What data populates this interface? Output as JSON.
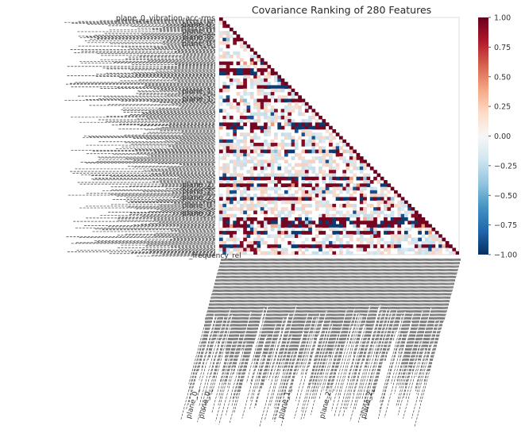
{
  "chart_data": {
    "type": "heatmap",
    "title": "Covariance Ranking of 280 Features",
    "n_features": 280,
    "matrix": "lower-triangular covariance ranking (dense, 280x280)",
    "value_range": [
      -1.0,
      1.0
    ],
    "colorbar": {
      "colormap": "RdBu_r",
      "ticks": [
        "1.00",
        "0.75",
        "0.50",
        "0.25",
        "0.00",
        "−0.25",
        "−0.50",
        "−0.75",
        "−1.00"
      ],
      "tick_values": [
        1.0,
        0.75,
        0.5,
        0.25,
        0.0,
        -0.25,
        -0.5,
        -0.75,
        -1.0
      ]
    },
    "y_tick_labels_legible": [
      "plane_0_vibration-acc-rms",
      "plane_0_",
      "plane_0_",
      "plane_0_",
      "plane_0_",
      "plane_1_",
      "plane_1_",
      "plane_2_",
      "plane_2_",
      "plane_2_",
      "plane_0_",
      "plane_2_"
    ],
    "x_tick_labels_legible": [
      "plane_0_",
      "plane_0_",
      "plane_1_",
      "plane_2_",
      "plane_2_"
    ],
    "bottom_label_fragment": "_frequency_rel",
    "colors": {
      "pos_strong": "#67001f",
      "neg_strong": "#053061",
      "neutral": "#f7f7f7",
      "frame": "#dddddd",
      "label": "#333333"
    }
  }
}
